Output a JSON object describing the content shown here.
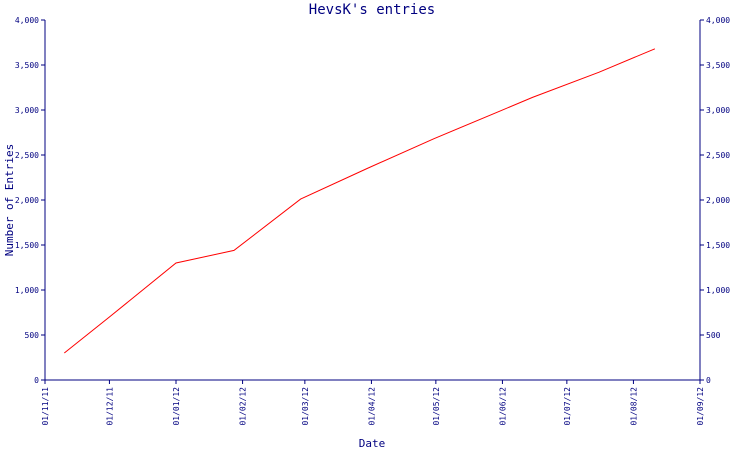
{
  "chart_data": {
    "type": "line",
    "title": "HevsK's entries",
    "xlabel": "Date",
    "ylabel": "Number of Entries",
    "x_tick_labels": [
      "01/11/11",
      "01/12/11",
      "01/01/12",
      "01/02/12",
      "01/03/12",
      "01/04/12",
      "01/05/12",
      "01/06/12",
      "01/07/12",
      "01/08/12",
      "01/09/12"
    ],
    "x_ticks": [
      "2011-11-01",
      "2011-12-01",
      "2012-01-01",
      "2012-02-01",
      "2012-03-01",
      "2012-04-01",
      "2012-05-01",
      "2012-06-01",
      "2012-07-01",
      "2012-08-01",
      "2012-09-01"
    ],
    "xlim": [
      "2011-11-01",
      "2012-09-01"
    ],
    "ylim": [
      0,
      4000
    ],
    "y_ticks": [
      0,
      500,
      1000,
      1500,
      2000,
      2500,
      3000,
      3500,
      4000
    ],
    "y_tick_labels": [
      "0",
      "500",
      "1,000",
      "1,500",
      "2,000",
      "2,500",
      "3,000",
      "3,500",
      "4,000"
    ],
    "right_axis": true,
    "grid": false,
    "series": [
      {
        "color": "#ff0000",
        "x": [
          "2011-11-10",
          "2011-12-01",
          "2012-01-01",
          "2012-01-28",
          "2012-02-28",
          "2012-03-30",
          "2012-04-30",
          "2012-05-31",
          "2012-06-15",
          "2012-07-16",
          "2012-08-11"
        ],
        "y": [
          300,
          700,
          1300,
          1440,
          2010,
          2350,
          2680,
          2990,
          3140,
          3420,
          3680
        ]
      }
    ]
  },
  "colors": {
    "axis": "#000080",
    "line": "#ff0000",
    "background": "#ffffff"
  }
}
